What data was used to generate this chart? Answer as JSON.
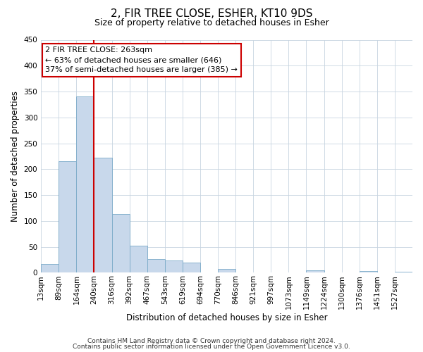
{
  "title": "2, FIR TREE CLOSE, ESHER, KT10 9DS",
  "subtitle": "Size of property relative to detached houses in Esher",
  "xlabel": "Distribution of detached houses by size in Esher",
  "ylabel": "Number of detached properties",
  "footer_line1": "Contains HM Land Registry data © Crown copyright and database right 2024.",
  "footer_line2": "Contains public sector information licensed under the Open Government Licence v3.0.",
  "bin_labels": [
    "13sqm",
    "89sqm",
    "164sqm",
    "240sqm",
    "316sqm",
    "392sqm",
    "467sqm",
    "543sqm",
    "619sqm",
    "694sqm",
    "770sqm",
    "846sqm",
    "921sqm",
    "997sqm",
    "1073sqm",
    "1149sqm",
    "1224sqm",
    "1300sqm",
    "1376sqm",
    "1451sqm",
    "1527sqm"
  ],
  "bar_heights": [
    17,
    215,
    340,
    222,
    113,
    52,
    26,
    24,
    20,
    0,
    8,
    0,
    0,
    0,
    0,
    5,
    0,
    0,
    3,
    0,
    2
  ],
  "bar_color": "#c8d8eb",
  "bar_edgecolor": "#7aaac8",
  "ylim": [
    0,
    450
  ],
  "yticks": [
    0,
    50,
    100,
    150,
    200,
    250,
    300,
    350,
    400,
    450
  ],
  "vline_x_bin": 3,
  "vline_color": "#cc0000",
  "annotation_title": "2 FIR TREE CLOSE: 263sqm",
  "annotation_line1": "← 63% of detached houses are smaller (646)",
  "annotation_line2": "37% of semi-detached houses are larger (385) →",
  "annotation_box_edgecolor": "#cc0000",
  "background_color": "#ffffff",
  "grid_color": "#c8d4e0",
  "title_fontsize": 11,
  "subtitle_fontsize": 9,
  "axis_label_fontsize": 8.5,
  "tick_fontsize": 7.5,
  "footer_fontsize": 6.5
}
